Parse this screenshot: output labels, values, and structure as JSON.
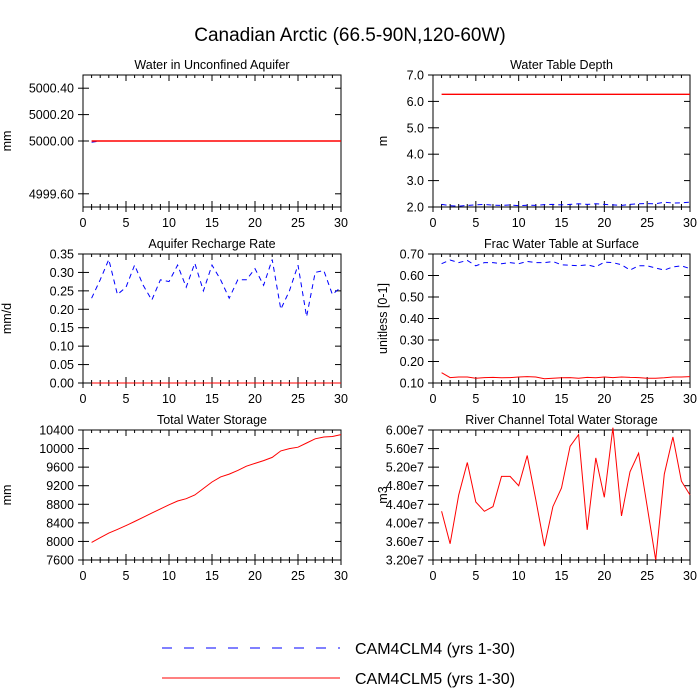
{
  "title": "Canadian Arctic (66.5-90N,120-60W)",
  "legend": [
    {
      "label": "CAM4CLM4 (yrs 1-30)",
      "color": "#0000ff",
      "dash": true
    },
    {
      "label": "CAM4CLM5 (yrs 1-30)",
      "color": "#ff0000",
      "dash": false
    }
  ],
  "chart_data": [
    {
      "type": "line",
      "title": "Water in Unconfined Aquifer",
      "ylabel": "mm",
      "xlim": [
        0,
        30
      ],
      "ylim": [
        4999.5,
        5000.5
      ],
      "xticks": [
        0,
        5,
        10,
        15,
        20,
        25,
        30
      ],
      "yticks": [
        4999.6,
        5000.0,
        5000.2,
        5000.4
      ],
      "ytick_labels": [
        "4999.60",
        "5000.00",
        "5000.20",
        "5000.40"
      ],
      "x": [
        1,
        2,
        3,
        4,
        5,
        6,
        7,
        8,
        9,
        10,
        11,
        12,
        13,
        14,
        15,
        16,
        17,
        18,
        19,
        20,
        21,
        22,
        23,
        24,
        25,
        26,
        27,
        28,
        29,
        30
      ],
      "series": [
        {
          "name": "CAM4CLM4 (yrs 1-30)",
          "color": "#0000ff",
          "dash": true,
          "values": [
            4999.99,
            5000,
            5000,
            5000,
            5000,
            5000,
            5000,
            5000,
            5000,
            5000,
            5000,
            5000,
            5000,
            5000,
            5000,
            5000,
            5000,
            5000,
            5000,
            5000,
            5000,
            5000,
            5000,
            5000,
            5000,
            5000,
            5000,
            5000,
            5000,
            5000
          ]
        },
        {
          "name": "CAM4CLM5 (yrs 1-30)",
          "color": "#ff0000",
          "dash": false,
          "values": [
            5000,
            5000,
            5000,
            5000,
            5000,
            5000,
            5000,
            5000,
            5000,
            5000,
            5000,
            5000,
            5000,
            5000,
            5000,
            5000,
            5000,
            5000,
            5000,
            5000,
            5000,
            5000,
            5000,
            5000,
            5000,
            5000,
            5000,
            5000,
            5000,
            5000
          ]
        }
      ]
    },
    {
      "type": "line",
      "title": "Water Table Depth",
      "ylabel": "m",
      "xlim": [
        0,
        30
      ],
      "ylim": [
        2.0,
        7.0
      ],
      "xticks": [
        0,
        5,
        10,
        15,
        20,
        25,
        30
      ],
      "yticks": [
        2.0,
        3.0,
        4.0,
        5.0,
        6.0,
        7.0
      ],
      "ytick_labels": [
        "2.0",
        "3.0",
        "4.0",
        "5.0",
        "6.0",
        "7.0"
      ],
      "x": [
        1,
        2,
        3,
        4,
        5,
        6,
        7,
        8,
        9,
        10,
        11,
        12,
        13,
        14,
        15,
        16,
        17,
        18,
        19,
        20,
        21,
        22,
        23,
        24,
        25,
        26,
        27,
        28,
        29,
        30
      ],
      "series": [
        {
          "name": "CAM4CLM4 (yrs 1-30)",
          "color": "#0000ff",
          "dash": true,
          "values": [
            2.1,
            2.05,
            2.03,
            2.06,
            2.08,
            2.1,
            2.07,
            2.06,
            2.08,
            2.05,
            2.07,
            2.06,
            2.09,
            2.1,
            2.08,
            2.1,
            2.12,
            2.1,
            2.12,
            2.1,
            2.08,
            2.06,
            2.1,
            2.12,
            2.13,
            2.12,
            2.18,
            2.15,
            2.16,
            2.18
          ]
        },
        {
          "name": "CAM4CLM5 (yrs 1-30)",
          "color": "#ff0000",
          "dash": false,
          "values": [
            6.27,
            6.27,
            6.27,
            6.27,
            6.27,
            6.27,
            6.27,
            6.27,
            6.27,
            6.27,
            6.27,
            6.27,
            6.27,
            6.27,
            6.27,
            6.27,
            6.27,
            6.27,
            6.27,
            6.27,
            6.27,
            6.27,
            6.27,
            6.27,
            6.27,
            6.27,
            6.27,
            6.27,
            6.27,
            6.27
          ]
        }
      ]
    },
    {
      "type": "line",
      "title": "Aquifer Recharge Rate",
      "ylabel": "mm/d",
      "xlim": [
        0,
        30
      ],
      "ylim": [
        0.0,
        0.35
      ],
      "xticks": [
        0,
        5,
        10,
        15,
        20,
        25,
        30
      ],
      "yticks": [
        0.0,
        0.05,
        0.1,
        0.15,
        0.2,
        0.25,
        0.3,
        0.35
      ],
      "ytick_labels": [
        "0.00",
        "0.05",
        "0.10",
        "0.15",
        "0.20",
        "0.25",
        "0.30",
        "0.35"
      ],
      "x": [
        1,
        2,
        3,
        4,
        5,
        6,
        7,
        8,
        9,
        10,
        11,
        12,
        13,
        14,
        15,
        16,
        17,
        18,
        19,
        20,
        21,
        22,
        23,
        24,
        25,
        26,
        27,
        28,
        29,
        30
      ],
      "series": [
        {
          "name": "CAM4CLM4 (yrs 1-30)",
          "color": "#0000ff",
          "dash": true,
          "values": [
            0.23,
            0.28,
            0.335,
            0.24,
            0.26,
            0.32,
            0.265,
            0.225,
            0.28,
            0.275,
            0.32,
            0.26,
            0.325,
            0.25,
            0.32,
            0.28,
            0.23,
            0.28,
            0.28,
            0.31,
            0.265,
            0.335,
            0.2,
            0.25,
            0.32,
            0.18,
            0.3,
            0.305,
            0.24,
            0.26
          ]
        },
        {
          "name": "CAM4CLM5 (yrs 1-30)",
          "color": "#ff0000",
          "dash": false,
          "values": [
            0,
            0,
            0,
            0,
            0,
            0,
            0,
            0,
            0,
            0,
            0,
            0,
            0,
            0,
            0,
            0,
            0,
            0,
            0,
            0,
            0,
            0,
            0,
            0,
            0,
            0,
            0,
            0,
            0,
            0
          ]
        }
      ]
    },
    {
      "type": "line",
      "title": "Frac Water Table at Surface",
      "ylabel": "unitless [0-1]",
      "xlim": [
        0,
        30
      ],
      "ylim": [
        0.1,
        0.7
      ],
      "xticks": [
        0,
        5,
        10,
        15,
        20,
        25,
        30
      ],
      "yticks": [
        0.1,
        0.2,
        0.3,
        0.4,
        0.5,
        0.6,
        0.7
      ],
      "ytick_labels": [
        "0.10",
        "0.20",
        "0.30",
        "0.40",
        "0.50",
        "0.60",
        "0.70"
      ],
      "x": [
        1,
        2,
        3,
        4,
        5,
        6,
        7,
        8,
        9,
        10,
        11,
        12,
        13,
        14,
        15,
        16,
        17,
        18,
        19,
        20,
        21,
        22,
        23,
        24,
        25,
        26,
        27,
        28,
        29,
        30
      ],
      "series": [
        {
          "name": "CAM4CLM4 (yrs 1-30)",
          "color": "#0000ff",
          "dash": true,
          "values": [
            0.655,
            0.672,
            0.66,
            0.67,
            0.645,
            0.66,
            0.66,
            0.655,
            0.66,
            0.655,
            0.665,
            0.66,
            0.66,
            0.665,
            0.65,
            0.648,
            0.645,
            0.65,
            0.64,
            0.662,
            0.66,
            0.65,
            0.625,
            0.645,
            0.645,
            0.635,
            0.625,
            0.64,
            0.645,
            0.632
          ]
        },
        {
          "name": "CAM4CLM5 (yrs 1-30)",
          "color": "#ff0000",
          "dash": false,
          "values": [
            0.148,
            0.125,
            0.128,
            0.128,
            0.122,
            0.125,
            0.126,
            0.124,
            0.125,
            0.128,
            0.13,
            0.128,
            0.12,
            0.122,
            0.124,
            0.125,
            0.122,
            0.126,
            0.124,
            0.128,
            0.125,
            0.128,
            0.126,
            0.125,
            0.122,
            0.122,
            0.124,
            0.128,
            0.128,
            0.13
          ]
        }
      ]
    },
    {
      "type": "line",
      "title": "Total Water Storage",
      "ylabel": "mm",
      "xlim": [
        0,
        30
      ],
      "ylim": [
        7600,
        10400
      ],
      "xticks": [
        0,
        5,
        10,
        15,
        20,
        25,
        30
      ],
      "yticks": [
        7600,
        8000,
        8400,
        8800,
        9200,
        9600,
        10000,
        10400
      ],
      "ytick_labels": [
        "7600",
        "8000",
        "8400",
        "8800",
        "9200",
        "9600",
        "10000",
        "10400"
      ],
      "x": [
        1,
        2,
        3,
        4,
        5,
        6,
        7,
        8,
        9,
        10,
        11,
        12,
        13,
        14,
        15,
        16,
        17,
        18,
        19,
        20,
        21,
        22,
        23,
        24,
        25,
        26,
        27,
        28,
        29,
        30
      ],
      "series": [
        {
          "name": "CAM4CLM5 (yrs 1-30)",
          "color": "#ff0000",
          "dash": false,
          "values": [
            7980,
            8080,
            8180,
            8260,
            8340,
            8430,
            8520,
            8610,
            8700,
            8790,
            8870,
            8920,
            9000,
            9140,
            9280,
            9390,
            9450,
            9530,
            9620,
            9680,
            9740,
            9810,
            9950,
            10000,
            10030,
            10120,
            10210,
            10250,
            10260,
            10300
          ]
        }
      ]
    },
    {
      "type": "line",
      "title": "River Channel Total Water Storage",
      "ylabel": "m3",
      "xlim": [
        0,
        30
      ],
      "ylim": [
        32000000.0,
        60000000.0
      ],
      "xticks": [
        0,
        5,
        10,
        15,
        20,
        25,
        30
      ],
      "yticks": [
        32000000.0,
        36000000.0,
        40000000.0,
        44000000.0,
        48000000.0,
        52000000.0,
        56000000.0,
        60000000.0
      ],
      "ytick_labels": [
        "3.20e7",
        "3.60e7",
        "4.00e7",
        "4.40e7",
        "4.80e7",
        "5.20e7",
        "5.60e7",
        "6.00e7"
      ],
      "x": [
        1,
        2,
        3,
        4,
        5,
        6,
        7,
        8,
        9,
        10,
        11,
        12,
        13,
        14,
        15,
        16,
        17,
        18,
        19,
        20,
        21,
        22,
        23,
        24,
        25,
        26,
        27,
        28,
        29,
        30
      ],
      "series": [
        {
          "name": "CAM4CLM5 (yrs 1-30)",
          "color": "#ff0000",
          "dash": false,
          "values": [
            42500000.0,
            35500000.0,
            46000000.0,
            53000000.0,
            44500000.0,
            42500000.0,
            43500000.0,
            50000000.0,
            50000000.0,
            48000000.0,
            54500000.0,
            45000000.0,
            35000000.0,
            43500000.0,
            47500000.0,
            56500000.0,
            59000000.0,
            38500000.0,
            54000000.0,
            45500000.0,
            60500000.0,
            41500000.0,
            51000000.0,
            55000000.0,
            43500000.0,
            32000000.0,
            50500000.0,
            58500000.0,
            49000000.0,
            46000000.0
          ]
        }
      ]
    }
  ]
}
